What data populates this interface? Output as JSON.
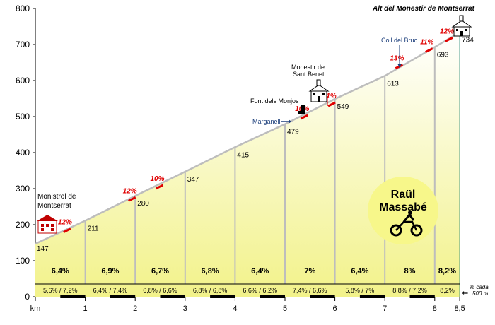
{
  "chart_data": {
    "type": "area",
    "title": "Alt del Monestir de  Montserrat",
    "credit": [
      "Raül",
      "Massabé"
    ],
    "xlabel": "km",
    "xlim": [
      0,
      8.5
    ],
    "ylim": [
      0,
      800
    ],
    "y_ticks": [
      "0",
      "100",
      "200",
      "300",
      "400",
      "500",
      "600",
      "700",
      "800"
    ],
    "x_ticks": [
      {
        "km": 0,
        "label": "km"
      },
      {
        "km": 1,
        "label": "1"
      },
      {
        "km": 2,
        "label": "2"
      },
      {
        "km": 3,
        "label": "3"
      },
      {
        "km": 4,
        "label": "4"
      },
      {
        "km": 5,
        "label": "5"
      },
      {
        "km": 6,
        "label": "6"
      },
      {
        "km": 7,
        "label": "7"
      },
      {
        "km": 8,
        "label": "8"
      },
      {
        "km": 8.5,
        "label": "8,5"
      }
    ],
    "profile": [
      {
        "km": 0,
        "alt": 147,
        "label": "147"
      },
      {
        "km": 1,
        "alt": 211,
        "label": "211"
      },
      {
        "km": 2,
        "alt": 280,
        "label": "280"
      },
      {
        "km": 3,
        "alt": 347,
        "label": "347"
      },
      {
        "km": 4,
        "alt": 415,
        "label": "415"
      },
      {
        "km": 5,
        "alt": 479,
        "label": "479"
      },
      {
        "km": 6,
        "alt": 549,
        "label": "549"
      },
      {
        "km": 7,
        "alt": 613,
        "label": "613"
      },
      {
        "km": 8,
        "alt": 693,
        "label": "693"
      },
      {
        "km": 8.5,
        "alt": 734,
        "label": "734"
      }
    ],
    "km_gradients": [
      "6,4%",
      "6,9%",
      "6,7%",
      "6,8%",
      "6,4%",
      "7%",
      "6,4%",
      "8%",
      "8,2%"
    ],
    "half_km_gradients": [
      "5,6% / 7,2%",
      "6,4% / 7,4%",
      "6,8% / 6,6%",
      "6,8% / 6,8%",
      "6,6% / 6,2%",
      "7,4% / 6,6%",
      "5,8% / 7%",
      "8,8% / 7,2%",
      "8,2%"
    ],
    "half_km_note": [
      "% cada",
      "500 m."
    ],
    "steep_sections": [
      {
        "km": 0.65,
        "alt": 185,
        "label": "12%"
      },
      {
        "km": 1.95,
        "alt": 272,
        "label": "12%"
      },
      {
        "km": 2.5,
        "alt": 306,
        "label": "10%"
      },
      {
        "km": 5.4,
        "alt": 500,
        "label": "10%"
      },
      {
        "km": 5.95,
        "alt": 535,
        "label": "11%"
      },
      {
        "km": 7.3,
        "alt": 640,
        "label": "13%"
      },
      {
        "km": 7.9,
        "alt": 685,
        "label": "11%"
      },
      {
        "km": 8.3,
        "alt": 715,
        "label": "12%"
      }
    ],
    "places": {
      "start": [
        "Monistrol de",
        "Montserrat"
      ],
      "sant_benet": [
        "Monestir de",
        "Sant Benet"
      ],
      "font_monjos": "Font dels Monjos",
      "marganell": "Marganell",
      "coll_bruc": "Coll del Bruc"
    },
    "colors": {
      "area_fill_top": "#ffffff",
      "area_fill_bottom": "#f2f28a",
      "profile_line": "#bdbdbd",
      "steep": "#e00000",
      "road_sign": "#1a3d7a",
      "credit_fill": "#f7f78a"
    }
  }
}
